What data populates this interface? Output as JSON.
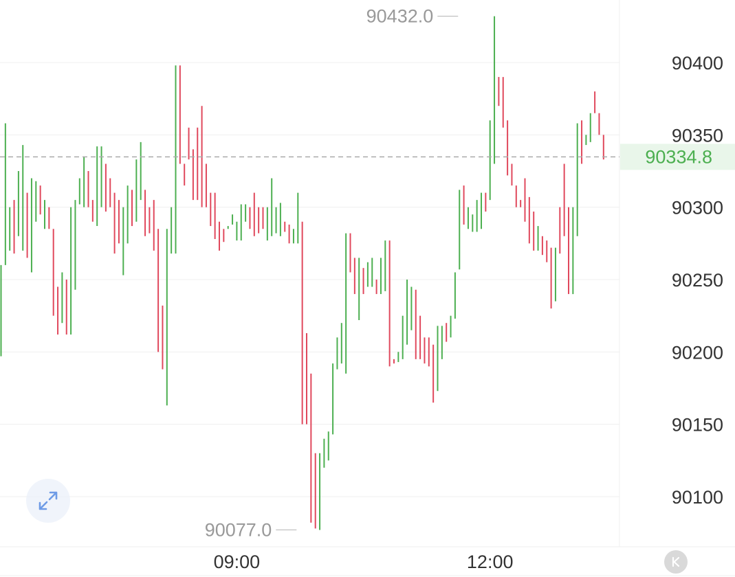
{
  "chart_data": {
    "type": "ohlc",
    "ylim": [
      90063,
      90442
    ],
    "y_ticks": [
      90100,
      90150,
      90200,
      90250,
      90300,
      90350,
      90400
    ],
    "y_tick_labels": [
      "90100",
      "90150",
      "90200",
      "90250",
      "90300",
      "90350",
      "90400"
    ],
    "x_tick_labels": [
      {
        "label": "09:00",
        "bar_index": 54
      },
      {
        "label": "12:00",
        "bar_index": 112
      }
    ],
    "grid": true,
    "last_price": 90334.8,
    "last_price_label": "90334.8",
    "max_annotation": {
      "label": "90432.0",
      "value": 90432.0,
      "bar_index": 105
    },
    "min_annotation": {
      "label": "90077.0",
      "value": 90077.0,
      "bar_index": 68
    },
    "colors": {
      "up": "#4caf50",
      "down": "#e0485c",
      "grid": "#efefef",
      "last_line": "#aaaaaa",
      "label": "#333333",
      "annotation": "#999999",
      "last_bg": "#e9f6ea"
    },
    "bars": [
      {
        "h": 90260,
        "l": 90197,
        "d": "up"
      },
      {
        "h": 90358,
        "l": 90260,
        "d": "up"
      },
      {
        "h": 90300,
        "l": 90270,
        "d": "up"
      },
      {
        "h": 90305,
        "l": 90268,
        "d": "down"
      },
      {
        "h": 90325,
        "l": 90280,
        "d": "up"
      },
      {
        "h": 90343,
        "l": 90270,
        "d": "up"
      },
      {
        "h": 90310,
        "l": 90265,
        "d": "down"
      },
      {
        "h": 90320,
        "l": 90255,
        "d": "up"
      },
      {
        "h": 90318,
        "l": 90290,
        "d": "up"
      },
      {
        "h": 90315,
        "l": 90295,
        "d": "down"
      },
      {
        "h": 90305,
        "l": 90285,
        "d": "up"
      },
      {
        "h": 90300,
        "l": 90285,
        "d": "down"
      },
      {
        "h": 90285,
        "l": 90225,
        "d": "down"
      },
      {
        "h": 90245,
        "l": 90212,
        "d": "down"
      },
      {
        "h": 90255,
        "l": 90220,
        "d": "up"
      },
      {
        "h": 90250,
        "l": 90212,
        "d": "down"
      },
      {
        "h": 90300,
        "l": 90212,
        "d": "up"
      },
      {
        "h": 90305,
        "l": 90243,
        "d": "up"
      },
      {
        "h": 90320,
        "l": 90302,
        "d": "up"
      },
      {
        "h": 90335,
        "l": 90300,
        "d": "up"
      },
      {
        "h": 90325,
        "l": 90300,
        "d": "down"
      },
      {
        "h": 90305,
        "l": 90290,
        "d": "down"
      },
      {
        "h": 90342,
        "l": 90287,
        "d": "up"
      },
      {
        "h": 90342,
        "l": 90300,
        "d": "up"
      },
      {
        "h": 90330,
        "l": 90297,
        "d": "down"
      },
      {
        "h": 90320,
        "l": 90300,
        "d": "down"
      },
      {
        "h": 90310,
        "l": 90268,
        "d": "down"
      },
      {
        "h": 90305,
        "l": 90275,
        "d": "down"
      },
      {
        "h": 90300,
        "l": 90253,
        "d": "up"
      },
      {
        "h": 90315,
        "l": 90275,
        "d": "up"
      },
      {
        "h": 90312,
        "l": 90287,
        "d": "down"
      },
      {
        "h": 90333,
        "l": 90290,
        "d": "up"
      },
      {
        "h": 90345,
        "l": 90305,
        "d": "up"
      },
      {
        "h": 90312,
        "l": 90280,
        "d": "down"
      },
      {
        "h": 90300,
        "l": 90282,
        "d": "down"
      },
      {
        "h": 90305,
        "l": 90270,
        "d": "down"
      },
      {
        "h": 90285,
        "l": 90200,
        "d": "down"
      },
      {
        "h": 90232,
        "l": 90188,
        "d": "down"
      },
      {
        "h": 90285,
        "l": 90163,
        "d": "up"
      },
      {
        "h": 90300,
        "l": 90268,
        "d": "up"
      },
      {
        "h": 90398,
        "l": 90268,
        "d": "up"
      },
      {
        "h": 90398,
        "l": 90330,
        "d": "down"
      },
      {
        "h": 90330,
        "l": 90315,
        "d": "down"
      },
      {
        "h": 90355,
        "l": 90333,
        "d": "down"
      },
      {
        "h": 90340,
        "l": 90305,
        "d": "down"
      },
      {
        "h": 90355,
        "l": 90305,
        "d": "down"
      },
      {
        "h": 90370,
        "l": 90300,
        "d": "down"
      },
      {
        "h": 90330,
        "l": 90300,
        "d": "down"
      },
      {
        "h": 90310,
        "l": 90287,
        "d": "down"
      },
      {
        "h": 90310,
        "l": 90278,
        "d": "down"
      },
      {
        "h": 90290,
        "l": 90270,
        "d": "down"
      },
      {
        "h": 90285,
        "l": 90276,
        "d": "down"
      },
      {
        "h": 90287,
        "l": 90285,
        "d": "up"
      },
      {
        "h": 90295,
        "l": 90288,
        "d": "up"
      },
      {
        "h": 90290,
        "l": 90277,
        "d": "up"
      },
      {
        "h": 90302,
        "l": 90277,
        "d": "up"
      },
      {
        "h": 90302,
        "l": 90290,
        "d": "up"
      },
      {
        "h": 90300,
        "l": 90285,
        "d": "down"
      },
      {
        "h": 90310,
        "l": 90280,
        "d": "down"
      },
      {
        "h": 90300,
        "l": 90282,
        "d": "down"
      },
      {
        "h": 90300,
        "l": 90285,
        "d": "down"
      },
      {
        "h": 90300,
        "l": 90277,
        "d": "up"
      },
      {
        "h": 90320,
        "l": 90280,
        "d": "up"
      },
      {
        "h": 90300,
        "l": 90282,
        "d": "up"
      },
      {
        "h": 90303,
        "l": 90280,
        "d": "up"
      },
      {
        "h": 90290,
        "l": 90283,
        "d": "down"
      },
      {
        "h": 90288,
        "l": 90275,
        "d": "down"
      },
      {
        "h": 90285,
        "l": 90275,
        "d": "up"
      },
      {
        "h": 90310,
        "l": 90275,
        "d": "up"
      },
      {
        "h": 90290,
        "l": 90150,
        "d": "down"
      },
      {
        "h": 90213,
        "l": 90150,
        "d": "down"
      },
      {
        "h": 90185,
        "l": 90082,
        "d": "down"
      },
      {
        "h": 90130,
        "l": 90078,
        "d": "down"
      },
      {
        "h": 90130,
        "l": 90077,
        "d": "up"
      },
      {
        "h": 90140,
        "l": 90120,
        "d": "up"
      },
      {
        "h": 90145,
        "l": 90125,
        "d": "up"
      },
      {
        "h": 90192,
        "l": 90143,
        "d": "up"
      },
      {
        "h": 90210,
        "l": 90188,
        "d": "up"
      },
      {
        "h": 90220,
        "l": 90192,
        "d": "up"
      },
      {
        "h": 90282,
        "l": 90185,
        "d": "up"
      },
      {
        "h": 90282,
        "l": 90255,
        "d": "down"
      },
      {
        "h": 90265,
        "l": 90240,
        "d": "down"
      },
      {
        "h": 90265,
        "l": 90222,
        "d": "up"
      },
      {
        "h": 90258,
        "l": 90240,
        "d": "down"
      },
      {
        "h": 90262,
        "l": 90245,
        "d": "up"
      },
      {
        "h": 90265,
        "l": 90245,
        "d": "up"
      },
      {
        "h": 90250,
        "l": 90240,
        "d": "down"
      },
      {
        "h": 90265,
        "l": 90240,
        "d": "up"
      },
      {
        "h": 90277,
        "l": 90242,
        "d": "up"
      },
      {
        "h": 90277,
        "l": 90190,
        "d": "down"
      },
      {
        "h": 90195,
        "l": 90192,
        "d": "down"
      },
      {
        "h": 90200,
        "l": 90193,
        "d": "up"
      },
      {
        "h": 90225,
        "l": 90195,
        "d": "up"
      },
      {
        "h": 90250,
        "l": 90205,
        "d": "up"
      },
      {
        "h": 90245,
        "l": 90215,
        "d": "up"
      },
      {
        "h": 90243,
        "l": 90195,
        "d": "down"
      },
      {
        "h": 90225,
        "l": 90195,
        "d": "down"
      },
      {
        "h": 90210,
        "l": 90192,
        "d": "down"
      },
      {
        "h": 90210,
        "l": 90190,
        "d": "down"
      },
      {
        "h": 90205,
        "l": 90165,
        "d": "down"
      },
      {
        "h": 90218,
        "l": 90173,
        "d": "up"
      },
      {
        "h": 90218,
        "l": 90195,
        "d": "up"
      },
      {
        "h": 90220,
        "l": 90207,
        "d": "down"
      },
      {
        "h": 90225,
        "l": 90210,
        "d": "up"
      },
      {
        "h": 90255,
        "l": 90223,
        "d": "up"
      },
      {
        "h": 90312,
        "l": 90257,
        "d": "up"
      },
      {
        "h": 90315,
        "l": 90288,
        "d": "down"
      },
      {
        "h": 90300,
        "l": 90285,
        "d": "up"
      },
      {
        "h": 90295,
        "l": 90283,
        "d": "up"
      },
      {
        "h": 90305,
        "l": 90283,
        "d": "up"
      },
      {
        "h": 90310,
        "l": 90285,
        "d": "up"
      },
      {
        "h": 90310,
        "l": 90297,
        "d": "down"
      },
      {
        "h": 90360,
        "l": 90305,
        "d": "up"
      },
      {
        "h": 90432,
        "l": 90330,
        "d": "up"
      },
      {
        "h": 90390,
        "l": 90370,
        "d": "down"
      },
      {
        "h": 90390,
        "l": 90355,
        "d": "down"
      },
      {
        "h": 90360,
        "l": 90322,
        "d": "down"
      },
      {
        "h": 90330,
        "l": 90315,
        "d": "down"
      },
      {
        "h": 90315,
        "l": 90300,
        "d": "down"
      },
      {
        "h": 90305,
        "l": 90300,
        "d": "down"
      },
      {
        "h": 90320,
        "l": 90290,
        "d": "down"
      },
      {
        "h": 90307,
        "l": 90275,
        "d": "down"
      },
      {
        "h": 90297,
        "l": 90270,
        "d": "down"
      },
      {
        "h": 90287,
        "l": 90270,
        "d": "up"
      },
      {
        "h": 90280,
        "l": 90267,
        "d": "down"
      },
      {
        "h": 90277,
        "l": 90262,
        "d": "down"
      },
      {
        "h": 90272,
        "l": 90230,
        "d": "down"
      },
      {
        "h": 90272,
        "l": 90235,
        "d": "up"
      },
      {
        "h": 90300,
        "l": 90268,
        "d": "down"
      },
      {
        "h": 90330,
        "l": 90280,
        "d": "down"
      },
      {
        "h": 90300,
        "l": 90240,
        "d": "down"
      },
      {
        "h": 90300,
        "l": 90240,
        "d": "up"
      },
      {
        "h": 90358,
        "l": 90280,
        "d": "up"
      },
      {
        "h": 90360,
        "l": 90330,
        "d": "down"
      },
      {
        "h": 90350,
        "l": 90343,
        "d": "up"
      },
      {
        "h": 90365,
        "l": 90345,
        "d": "up"
      },
      {
        "h": 90380,
        "l": 90365,
        "d": "down"
      },
      {
        "h": 90365,
        "l": 90350,
        "d": "down"
      },
      {
        "h": 90350,
        "l": 90333,
        "d": "down"
      }
    ]
  },
  "controls": {
    "expand_icon": "expand-arrows-icon",
    "kline_icon": "k-line-icon"
  }
}
